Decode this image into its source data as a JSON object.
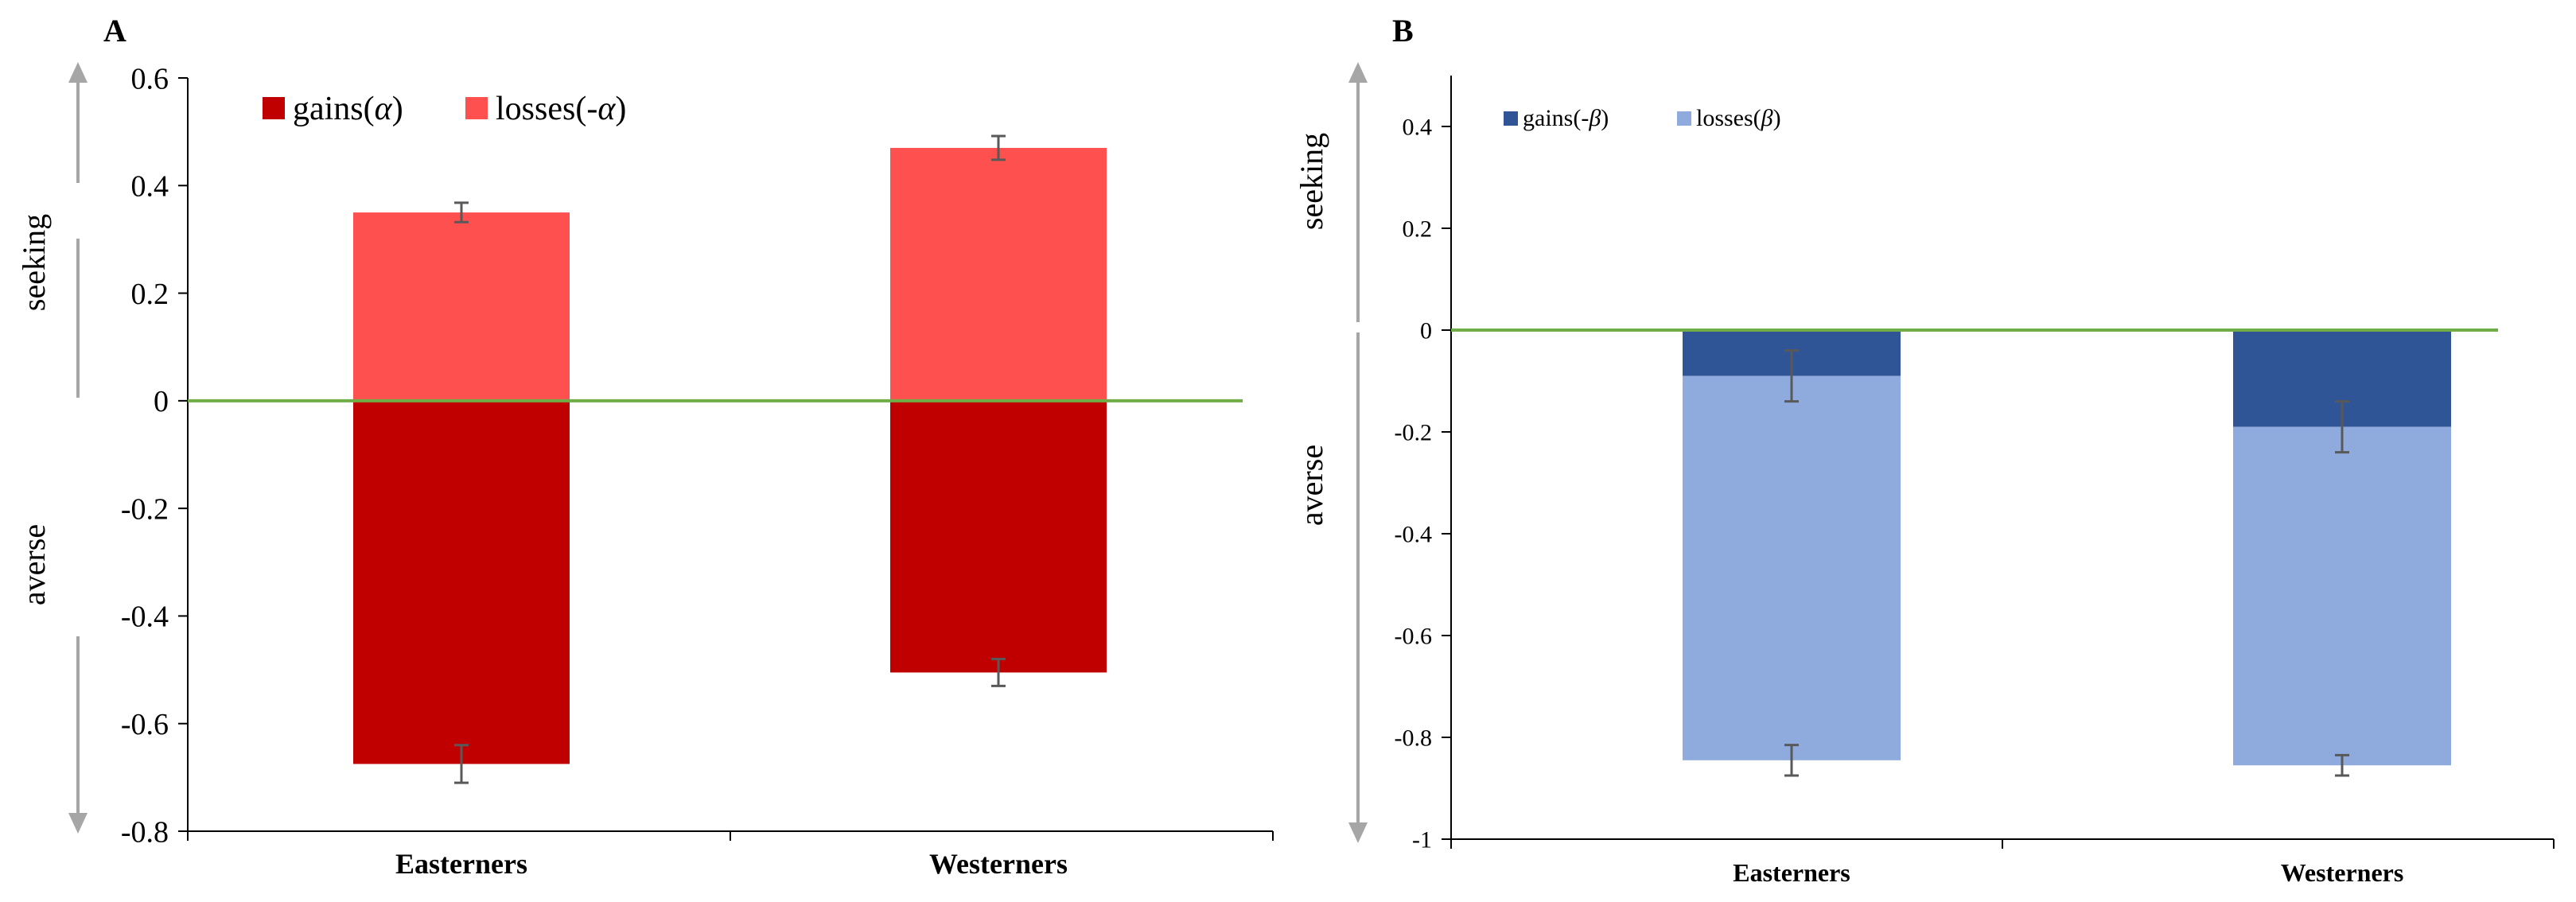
{
  "chart_data": [
    {
      "panel_label": "A",
      "type": "bar",
      "stacked": true,
      "categories": [
        "Easterners",
        "Westerners"
      ],
      "series": [
        {
          "name": "gains",
          "symbol": "α",
          "legend_prefix": "gains(",
          "legend_suffix": ")",
          "values": [
            -0.675,
            -0.505
          ],
          "errors": [
            0.035,
            0.025
          ]
        },
        {
          "name": "losses",
          "symbol": "-α",
          "legend_prefix": "losses(",
          "legend_suffix": ")",
          "values": [
            0.35,
            0.47
          ],
          "errors": [
            0.018,
            0.022
          ]
        }
      ],
      "ylim": [
        -0.8,
        0.6
      ],
      "yticks": [
        "0.6",
        "0.4",
        "0.2",
        "0",
        "-0.2",
        "-0.4",
        "-0.6",
        "-0.8"
      ],
      "ytick_values": [
        0.6,
        0.4,
        0.2,
        0,
        -0.2,
        -0.4,
        -0.6,
        -0.8
      ],
      "direction_labels": {
        "up": "seeking",
        "down": "averse"
      },
      "legend_position": "top-left",
      "zero_line": true
    },
    {
      "panel_label": "B",
      "type": "bar",
      "stacked": true,
      "categories": [
        "Easterners",
        "Westerners"
      ],
      "series": [
        {
          "name": "gains",
          "symbol": "-β",
          "legend_prefix": "gains(",
          "legend_suffix": ")",
          "values": [
            -0.09,
            -0.19
          ],
          "errors": [
            0.05,
            0.05
          ]
        },
        {
          "name": "losses",
          "symbol": "β",
          "legend_prefix": "losses(",
          "legend_suffix": ")",
          "values": [
            -0.755,
            -0.665
          ],
          "errors": [
            0.03,
            0.02
          ]
        }
      ],
      "ylim": [
        -1,
        0.5
      ],
      "yticks": [
        "0.4",
        "0.2",
        "0",
        "-0.2",
        "-0.4",
        "-0.6",
        "-0.8",
        "-1"
      ],
      "ytick_values": [
        0.4,
        0.2,
        0,
        -0.2,
        -0.4,
        -0.6,
        -0.8,
        -1
      ],
      "direction_labels": {
        "up": "seeking",
        "down": "averse"
      },
      "legend_position": "top-left",
      "zero_line": true
    }
  ],
  "colors": {
    "a_gains": "#c00000",
    "a_losses": "#ff5050",
    "b_gains": "#2f5597",
    "b_losses": "#8faadc",
    "zero_line": "#70ad47",
    "axis": "#000000",
    "arrow": "#a6a6a6",
    "errorbar": "#595959"
  }
}
